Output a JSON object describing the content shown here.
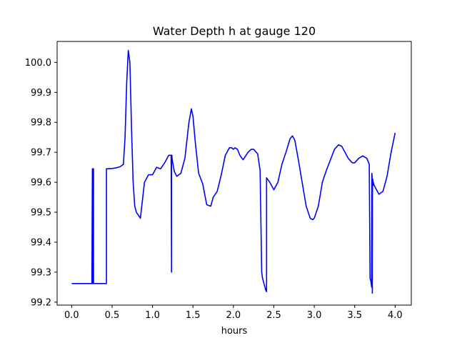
{
  "chart_data": {
    "type": "line",
    "title": "Water Depth h at gauge 120",
    "xlabel": "hours",
    "ylabel": "",
    "xlim": [
      -0.18,
      4.2
    ],
    "ylim": [
      99.19,
      100.07
    ],
    "x_ticks": [
      0.0,
      0.5,
      1.0,
      1.5,
      2.0,
      2.5,
      3.0,
      3.5,
      4.0
    ],
    "x_tick_labels": [
      "0.0",
      "0.5",
      "1.0",
      "1.5",
      "2.0",
      "2.5",
      "3.0",
      "3.5",
      "4.0"
    ],
    "y_ticks": [
      99.2,
      99.3,
      99.4,
      99.5,
      99.6,
      99.7,
      99.8,
      99.9,
      100.0
    ],
    "y_tick_labels": [
      "99.2",
      "99.3",
      "99.4",
      "99.5",
      "99.6",
      "99.7",
      "99.8",
      "99.9",
      "100.0"
    ],
    "grid": false,
    "line_color": "#0000ff",
    "series": [
      {
        "x": [
          0.0,
          0.25,
          0.25,
          0.256,
          0.256,
          0.265,
          0.265,
          0.27,
          0.27,
          0.43,
          0.43,
          0.5,
          0.55,
          0.6,
          0.64,
          0.66,
          0.68,
          0.7,
          0.72,
          0.74,
          0.76,
          0.78,
          0.8,
          0.85,
          0.9,
          0.95,
          1.0,
          1.05,
          1.1,
          1.15,
          1.2,
          1.23,
          1.235,
          1.235,
          1.24,
          1.24,
          1.25,
          1.27,
          1.3,
          1.35,
          1.4,
          1.45,
          1.48,
          1.5,
          1.53,
          1.57,
          1.62,
          1.67,
          1.72,
          1.75,
          1.8,
          1.85,
          1.9,
          1.95,
          1.98,
          2.0,
          2.02,
          2.05,
          2.08,
          2.12,
          2.18,
          2.22,
          2.25,
          2.3,
          2.33,
          2.35,
          2.36,
          2.38,
          2.4,
          2.41,
          2.41,
          2.45,
          2.5,
          2.55,
          2.6,
          2.65,
          2.7,
          2.73,
          2.76,
          2.8,
          2.85,
          2.9,
          2.95,
          2.98,
          3.0,
          3.05,
          3.1,
          3.15,
          3.2,
          3.25,
          3.3,
          3.34,
          3.38,
          3.42,
          3.47,
          3.5,
          3.55,
          3.6,
          3.65,
          3.68,
          3.69,
          3.7,
          3.71,
          3.712,
          3.715,
          3.718,
          3.72,
          3.724,
          3.727,
          3.73,
          3.74,
          3.76,
          3.8,
          3.85,
          3.9,
          3.95,
          4.0
        ],
        "y": [
          99.262,
          99.262,
          99.262,
          99.645,
          99.262,
          99.262,
          99.645,
          99.645,
          99.262,
          99.262,
          99.645,
          99.646,
          99.648,
          99.652,
          99.66,
          99.75,
          99.93,
          100.04,
          100.0,
          99.78,
          99.6,
          99.52,
          99.5,
          99.48,
          99.6,
          99.625,
          99.625,
          99.65,
          99.645,
          99.665,
          99.69,
          99.69,
          99.3,
          99.69,
          99.69,
          99.68,
          99.665,
          99.635,
          99.62,
          99.63,
          99.68,
          99.8,
          99.845,
          99.82,
          99.73,
          99.63,
          99.595,
          99.525,
          99.52,
          99.55,
          99.57,
          99.625,
          99.69,
          99.715,
          99.715,
          99.71,
          99.715,
          99.71,
          99.69,
          99.675,
          99.7,
          99.71,
          99.71,
          99.695,
          99.64,
          99.3,
          99.28,
          99.26,
          99.24,
          99.235,
          99.615,
          99.6,
          99.575,
          99.6,
          99.66,
          99.7,
          99.745,
          99.755,
          99.74,
          99.68,
          99.6,
          99.52,
          99.48,
          99.475,
          99.48,
          99.52,
          99.6,
          99.64,
          99.675,
          99.71,
          99.725,
          99.72,
          99.7,
          99.68,
          99.665,
          99.665,
          99.68,
          99.688,
          99.68,
          99.66,
          99.28,
          99.27,
          99.25,
          99.63,
          99.62,
          99.23,
          99.6,
          99.61,
          99.59,
          99.6,
          99.59,
          99.58,
          99.56,
          99.57,
          99.62,
          99.7,
          99.765
        ]
      }
    ]
  }
}
